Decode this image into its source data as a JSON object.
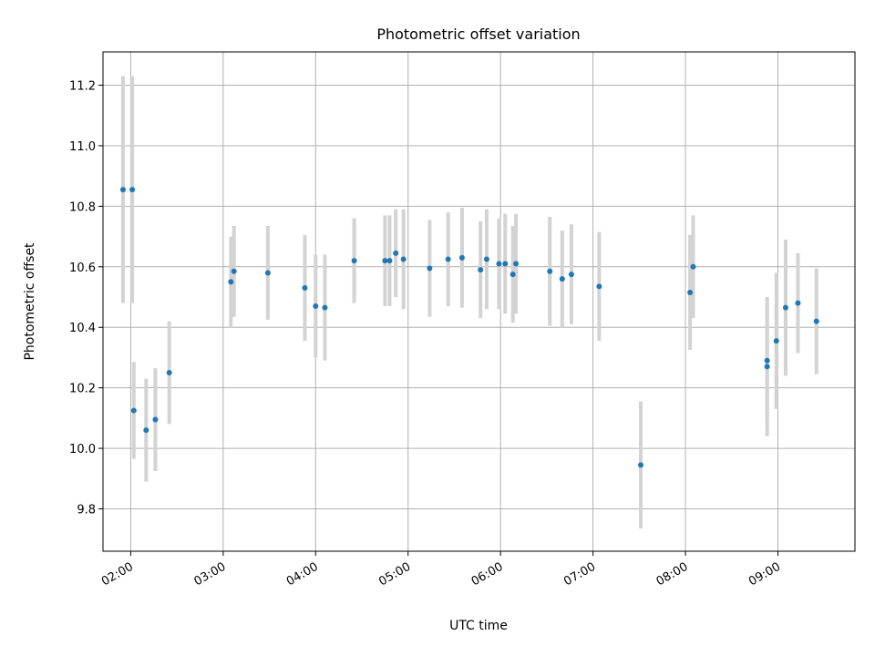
{
  "chart_data": {
    "type": "scatter",
    "title": "Photometric offset variation",
    "xlabel": "UTC time",
    "ylabel": "Photometric offset",
    "x_tick_labels": [
      "02:00",
      "03:00",
      "04:00",
      "05:00",
      "06:00",
      "07:00",
      "08:00",
      "09:00"
    ],
    "y_ticks": [
      9.8,
      10.0,
      10.2,
      10.4,
      10.6,
      10.8,
      11.0,
      11.2
    ],
    "xlim": [
      "01:42",
      "09:50"
    ],
    "ylim": [
      9.66,
      11.31
    ],
    "grid": true,
    "marker_color": "#1f77b4",
    "errorbar_color": "#d3d3d3",
    "points": [
      {
        "t": "01:55",
        "y": 10.855,
        "err": 0.375
      },
      {
        "t": "02:01",
        "y": 10.855,
        "err": 0.375
      },
      {
        "t": "02:02",
        "y": 10.125,
        "err": 0.16
      },
      {
        "t": "02:10",
        "y": 10.06,
        "err": 0.17
      },
      {
        "t": "02:16",
        "y": 10.095,
        "err": 0.17
      },
      {
        "t": "02:25",
        "y": 10.25,
        "err": 0.17
      },
      {
        "t": "03:05",
        "y": 10.55,
        "err": 0.15
      },
      {
        "t": "03:07",
        "y": 10.585,
        "err": 0.15
      },
      {
        "t": "03:29",
        "y": 10.58,
        "err": 0.155
      },
      {
        "t": "03:53",
        "y": 10.53,
        "err": 0.175
      },
      {
        "t": "04:00",
        "y": 10.47,
        "err": 0.17
      },
      {
        "t": "04:06",
        "y": 10.465,
        "err": 0.175
      },
      {
        "t": "04:25",
        "y": 10.62,
        "err": 0.14
      },
      {
        "t": "04:45",
        "y": 10.62,
        "err": 0.15
      },
      {
        "t": "04:48",
        "y": 10.62,
        "err": 0.15
      },
      {
        "t": "04:52",
        "y": 10.645,
        "err": 0.145
      },
      {
        "t": "04:57",
        "y": 10.625,
        "err": 0.165
      },
      {
        "t": "05:14",
        "y": 10.595,
        "err": 0.16
      },
      {
        "t": "05:26",
        "y": 10.625,
        "err": 0.155
      },
      {
        "t": "05:35",
        "y": 10.63,
        "err": 0.165
      },
      {
        "t": "05:47",
        "y": 10.59,
        "err": 0.16
      },
      {
        "t": "05:51",
        "y": 10.625,
        "err": 0.165
      },
      {
        "t": "05:59",
        "y": 10.61,
        "err": 0.15
      },
      {
        "t": "06:03",
        "y": 10.61,
        "err": 0.165
      },
      {
        "t": "06:08",
        "y": 10.575,
        "err": 0.16
      },
      {
        "t": "06:10",
        "y": 10.61,
        "err": 0.165
      },
      {
        "t": "06:32",
        "y": 10.585,
        "err": 0.18
      },
      {
        "t": "06:40",
        "y": 10.56,
        "err": 0.16
      },
      {
        "t": "06:46",
        "y": 10.575,
        "err": 0.165
      },
      {
        "t": "07:04",
        "y": 10.535,
        "err": 0.18
      },
      {
        "t": "07:31",
        "y": 9.945,
        "err": 0.21
      },
      {
        "t": "08:03",
        "y": 10.515,
        "err": 0.19
      },
      {
        "t": "08:05",
        "y": 10.6,
        "err": 0.17
      },
      {
        "t": "08:53",
        "y": 10.27,
        "err": 0.23
      },
      {
        "t": "08:53",
        "y": 10.29,
        "err": 0.2
      },
      {
        "t": "08:59",
        "y": 10.355,
        "err": 0.225
      },
      {
        "t": "09:05",
        "y": 10.465,
        "err": 0.225
      },
      {
        "t": "09:13",
        "y": 10.48,
        "err": 0.165
      },
      {
        "t": "09:25",
        "y": 10.42,
        "err": 0.175
      }
    ]
  }
}
